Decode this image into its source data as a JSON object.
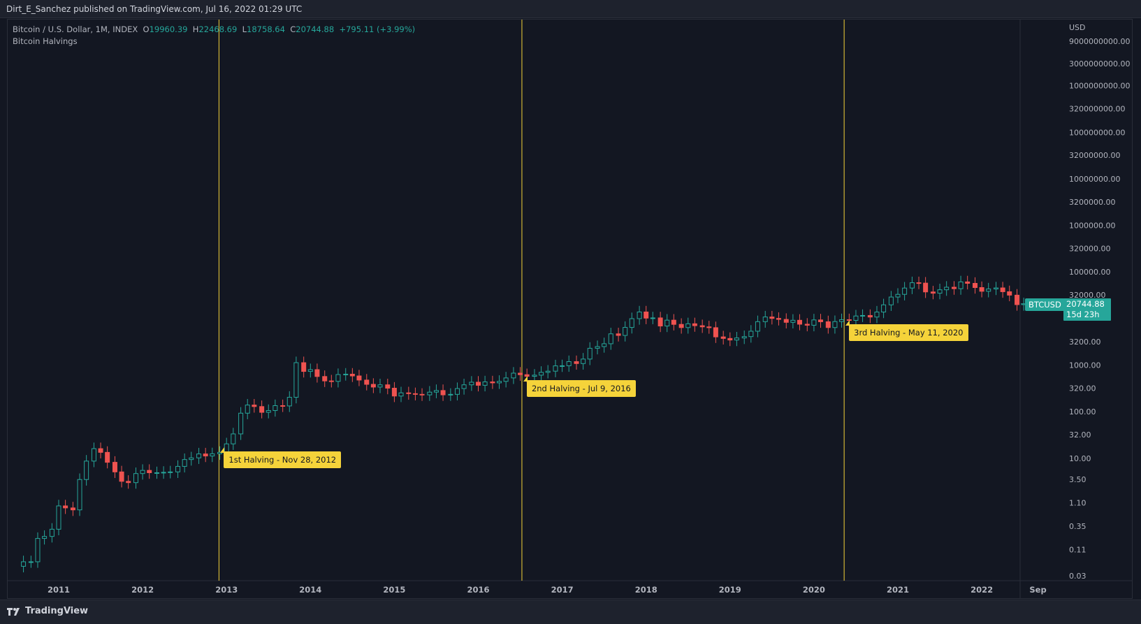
{
  "header": {
    "text": "Dirt_E_Sanchez published on TradingView.com, Jul 16, 2022 01:29 UTC"
  },
  "legend": {
    "symbol": "Bitcoin / U.S. Dollar, 1M, INDEX",
    "o_label": "O",
    "o_value": "19960.39",
    "h_label": "H",
    "h_value": "22468.69",
    "l_label": "L",
    "l_value": "18758.64",
    "c_label": "C",
    "c_value": "20744.88",
    "change": "+795.11 (+3.99%)",
    "indicator": "Bitcoin Halvings"
  },
  "price_axis": {
    "currency": "USD",
    "badge_symbol": "BTCUSD",
    "last_price": "20744.88",
    "countdown": "15d 23h"
  },
  "halvings": [
    {
      "label": "1st Halving - Nov 28, 2012",
      "year": 2012.91
    },
    {
      "label": "2nd Halving - Jul 9, 2016",
      "year": 2016.52
    },
    {
      "label": "3rd Halving - May 11, 2020",
      "year": 2020.36
    }
  ],
  "footer": {
    "brand": "TradingView"
  },
  "colors": {
    "background": "#131722",
    "up": "#26a69a",
    "down": "#ef5350",
    "halving": "#f5d33a",
    "text": "#b2b5be",
    "grid_border": "#2a2e39"
  },
  "chart_data": {
    "type": "candlestick",
    "title": "Bitcoin / U.S. Dollar, 1M, INDEX",
    "scale": "log",
    "ylim": [
      0.03,
      9000000000
    ],
    "y_ticks": [
      {
        "label": "9000000000.00",
        "value": 9000000000
      },
      {
        "label": "3000000000.00",
        "value": 3000000000
      },
      {
        "label": "1000000000.00",
        "value": 1000000000
      },
      {
        "label": "320000000.00",
        "value": 320000000
      },
      {
        "label": "100000000.00",
        "value": 100000000
      },
      {
        "label": "32000000.00",
        "value": 32000000
      },
      {
        "label": "10000000.00",
        "value": 10000000
      },
      {
        "label": "3200000.00",
        "value": 3200000
      },
      {
        "label": "1000000.00",
        "value": 1000000
      },
      {
        "label": "320000.00",
        "value": 320000
      },
      {
        "label": "100000.00",
        "value": 100000
      },
      {
        "label": "32000.00",
        "value": 32000
      },
      {
        "label": "3200.00",
        "value": 3200
      },
      {
        "label": "1000.00",
        "value": 1000
      },
      {
        "label": "320.00",
        "value": 320
      },
      {
        "label": "100.00",
        "value": 100
      },
      {
        "label": "32.00",
        "value": 32
      },
      {
        "label": "10.00",
        "value": 10
      },
      {
        "label": "3.50",
        "value": 3.5
      },
      {
        "label": "1.10",
        "value": 1.1
      },
      {
        "label": "0.35",
        "value": 0.35
      },
      {
        "label": "0.11",
        "value": 0.11
      },
      {
        "label": "0.03",
        "value": 0.03
      }
    ],
    "x_ticks": [
      {
        "label": "2011",
        "year": 2011.0
      },
      {
        "label": "2012",
        "year": 2012.0
      },
      {
        "label": "2013",
        "year": 2013.0
      },
      {
        "label": "2014",
        "year": 2014.0
      },
      {
        "label": "2015",
        "year": 2015.0
      },
      {
        "label": "2016",
        "year": 2016.0
      },
      {
        "label": "2017",
        "year": 2017.0
      },
      {
        "label": "2018",
        "year": 2018.0
      },
      {
        "label": "2019",
        "year": 2019.0
      },
      {
        "label": "2020",
        "year": 2020.0
      },
      {
        "label": "2021",
        "year": 2021.0
      },
      {
        "label": "2022",
        "year": 2022.0
      },
      {
        "label": "Sep",
        "year": 2022.67
      }
    ],
    "xlim": [
      2010.5,
      2023.3
    ],
    "closes": [
      [
        2010.58,
        0.06
      ],
      [
        2010.67,
        0.06
      ],
      [
        2010.75,
        0.19
      ],
      [
        2010.83,
        0.21
      ],
      [
        2010.92,
        0.3
      ],
      [
        2011.0,
        0.95
      ],
      [
        2011.08,
        0.86
      ],
      [
        2011.17,
        0.78
      ],
      [
        2011.25,
        3.5
      ],
      [
        2011.33,
        8.7
      ],
      [
        2011.42,
        16.1
      ],
      [
        2011.5,
        13.4
      ],
      [
        2011.58,
        8.2
      ],
      [
        2011.67,
        5.1
      ],
      [
        2011.75,
        3.2
      ],
      [
        2011.83,
        3.0
      ],
      [
        2011.92,
        4.7
      ],
      [
        2012.0,
        5.5
      ],
      [
        2012.08,
        4.9
      ],
      [
        2012.17,
        4.9
      ],
      [
        2012.25,
        5.0
      ],
      [
        2012.33,
        5.1
      ],
      [
        2012.42,
        6.7
      ],
      [
        2012.5,
        9.4
      ],
      [
        2012.58,
        10.2
      ],
      [
        2012.67,
        12.4
      ],
      [
        2012.75,
        11.2
      ],
      [
        2012.83,
        12.5
      ],
      [
        2012.92,
        13.4
      ],
      [
        2013.0,
        20.4
      ],
      [
        2013.08,
        33.4
      ],
      [
        2013.17,
        93.0
      ],
      [
        2013.25,
        139.0
      ],
      [
        2013.33,
        129.0
      ],
      [
        2013.42,
        97.0
      ],
      [
        2013.5,
        106.0
      ],
      [
        2013.58,
        135.0
      ],
      [
        2013.67,
        133.0
      ],
      [
        2013.75,
        204.0
      ],
      [
        2013.83,
        1129.0
      ],
      [
        2013.92,
        732.0
      ],
      [
        2014.0,
        800.0
      ],
      [
        2014.08,
        570.0
      ],
      [
        2014.17,
        458.0
      ],
      [
        2014.25,
        448.0
      ],
      [
        2014.33,
        628.0
      ],
      [
        2014.42,
        640.0
      ],
      [
        2014.5,
        586.0
      ],
      [
        2014.58,
        478.0
      ],
      [
        2014.67,
        387.0
      ],
      [
        2014.75,
        338.0
      ],
      [
        2014.83,
        378.0
      ],
      [
        2014.92,
        320.0
      ],
      [
        2015.0,
        217.0
      ],
      [
        2015.08,
        254.0
      ],
      [
        2015.17,
        244.0
      ],
      [
        2015.25,
        236.0
      ],
      [
        2015.33,
        230.0
      ],
      [
        2015.42,
        263.0
      ],
      [
        2015.5,
        285.0
      ],
      [
        2015.58,
        230.0
      ],
      [
        2015.67,
        236.0
      ],
      [
        2015.75,
        314.0
      ],
      [
        2015.83,
        378.0
      ],
      [
        2015.92,
        430.0
      ],
      [
        2016.0,
        369.0
      ],
      [
        2016.08,
        437.0
      ],
      [
        2016.17,
        416.0
      ],
      [
        2016.25,
        448.0
      ],
      [
        2016.33,
        531.0
      ],
      [
        2016.42,
        673.0
      ],
      [
        2016.5,
        624.0
      ],
      [
        2016.58,
        575.0
      ],
      [
        2016.67,
        609.0
      ],
      [
        2016.75,
        700.0
      ],
      [
        2016.83,
        742.0
      ],
      [
        2016.92,
        964.0
      ],
      [
        2017.0,
        970.0
      ],
      [
        2017.08,
        1190.0
      ],
      [
        2017.17,
        1080.0
      ],
      [
        2017.25,
        1350.0
      ],
      [
        2017.33,
        2300.0
      ],
      [
        2017.42,
        2500.0
      ],
      [
        2017.5,
        2880.0
      ],
      [
        2017.58,
        4700.0
      ],
      [
        2017.67,
        4340.0
      ],
      [
        2017.75,
        6450.0
      ],
      [
        2017.83,
        9950.0
      ],
      [
        2017.92,
        13850.0
      ],
      [
        2018.0,
        10220.0
      ],
      [
        2018.08,
        10330.0
      ],
      [
        2018.17,
        6920.0
      ],
      [
        2018.25,
        9240.0
      ],
      [
        2018.33,
        7500.0
      ],
      [
        2018.42,
        6400.0
      ],
      [
        2018.5,
        7730.0
      ],
      [
        2018.58,
        7030.0
      ],
      [
        2018.67,
        6630.0
      ],
      [
        2018.75,
        6370.0
      ],
      [
        2018.83,
        4040.0
      ],
      [
        2018.92,
        3740.0
      ],
      [
        2019.0,
        3460.0
      ],
      [
        2019.08,
        3830.0
      ],
      [
        2019.17,
        4100.0
      ],
      [
        2019.25,
        5350.0
      ],
      [
        2019.33,
        8570.0
      ],
      [
        2019.42,
        10820.0
      ],
      [
        2019.5,
        10080.0
      ],
      [
        2019.58,
        9590.0
      ],
      [
        2019.67,
        8290.0
      ],
      [
        2019.75,
        9190.0
      ],
      [
        2019.83,
        7560.0
      ],
      [
        2019.92,
        7190.0
      ],
      [
        2020.0,
        9350.0
      ],
      [
        2020.08,
        8540.0
      ],
      [
        2020.17,
        6410.0
      ],
      [
        2020.25,
        8620.0
      ],
      [
        2020.33,
        9450.0
      ],
      [
        2020.42,
        9140.0
      ],
      [
        2020.5,
        11350.0
      ],
      [
        2020.58,
        11650.0
      ],
      [
        2020.67,
        10780.0
      ],
      [
        2020.75,
        13800.0
      ],
      [
        2020.83,
        19700.0
      ],
      [
        2020.92,
        28990.0
      ],
      [
        2021.0,
        33110.0
      ],
      [
        2021.08,
        45200.0
      ],
      [
        2021.17,
        58800.0
      ],
      [
        2021.25,
        57700.0
      ],
      [
        2021.33,
        37300.0
      ],
      [
        2021.42,
        35000.0
      ],
      [
        2021.5,
        41500.0
      ],
      [
        2021.58,
        47100.0
      ],
      [
        2021.67,
        43800.0
      ],
      [
        2021.75,
        61300.0
      ],
      [
        2021.83,
        57000.0
      ],
      [
        2021.92,
        46300.0
      ],
      [
        2022.0,
        38500.0
      ],
      [
        2022.08,
        43200.0
      ],
      [
        2022.17,
        45500.0
      ],
      [
        2022.25,
        37700.0
      ],
      [
        2022.33,
        31800.0
      ],
      [
        2022.42,
        19900.0
      ],
      [
        2022.5,
        20744.88
      ]
    ]
  }
}
